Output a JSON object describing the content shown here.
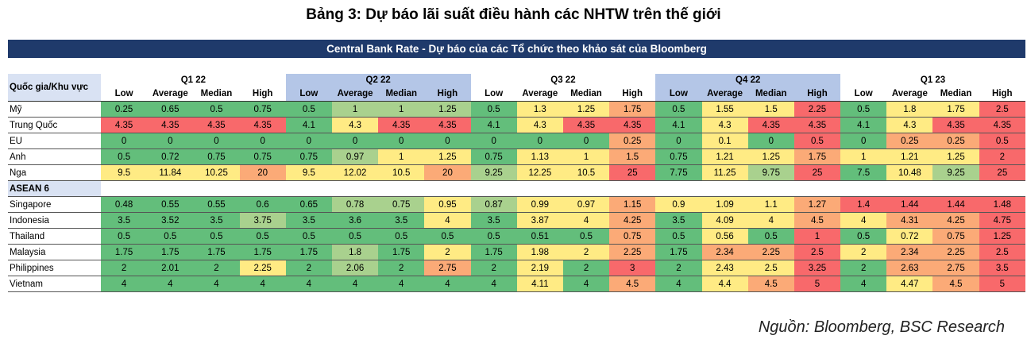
{
  "title": "Bảng 3: Dự báo lãi suất điều hành các NHTW trên thế giới",
  "banner": "Central Bank Rate - Dự báo của các Tổ chức theo khảo sát của Bloomberg",
  "row_header_label": "Quốc gia/Khu vực",
  "quarters": [
    "Q1 22",
    "Q2 22",
    "Q3 22",
    "Q4 22",
    "Q1 23"
  ],
  "metrics": [
    "Low",
    "Average",
    "Median",
    "High"
  ],
  "section_label": "ASEAN 6",
  "colors": {
    "green": "#63be7b",
    "lightgreen": "#a9d18e",
    "yellow": "#ffeb84",
    "orange": "#fbaa77",
    "red": "#f8696b",
    "header_blue": "#b4c6e7",
    "banner": "#1f3a6b"
  },
  "rows": [
    {
      "name": "Mỹ",
      "values": [
        "0.25",
        "0.65",
        "0.5",
        "0.75",
        "0.5",
        "1",
        "1",
        "1.25",
        "0.5",
        "1.3",
        "1.25",
        "1.75",
        "0.5",
        "1.55",
        "1.5",
        "2.25",
        "0.5",
        "1.8",
        "1.75",
        "2.5"
      ],
      "colors": [
        "g",
        "g",
        "g",
        "g",
        "g",
        "lg",
        "lg",
        "lg",
        "g",
        "y",
        "y",
        "o",
        "g",
        "y",
        "y",
        "r",
        "g",
        "y",
        "y",
        "r"
      ]
    },
    {
      "name": "Trung Quốc",
      "values": [
        "4.35",
        "4.35",
        "4.35",
        "4.35",
        "4.1",
        "4.3",
        "4.35",
        "4.35",
        "4.1",
        "4.3",
        "4.35",
        "4.35",
        "4.1",
        "4.3",
        "4.35",
        "4.35",
        "4.1",
        "4.3",
        "4.35",
        "4.35"
      ],
      "colors": [
        "r",
        "r",
        "r",
        "r",
        "g",
        "y",
        "r",
        "r",
        "g",
        "y",
        "r",
        "r",
        "g",
        "y",
        "r",
        "r",
        "g",
        "y",
        "r",
        "r"
      ]
    },
    {
      "name": "EU",
      "values": [
        "0",
        "0",
        "0",
        "0",
        "0",
        "0",
        "0",
        "0",
        "0",
        "0",
        "0",
        "0.25",
        "0",
        "0.1",
        "0",
        "0.5",
        "0",
        "0.25",
        "0.25",
        "0.5"
      ],
      "colors": [
        "g",
        "g",
        "g",
        "g",
        "g",
        "g",
        "g",
        "g",
        "g",
        "g",
        "g",
        "o",
        "g",
        "y",
        "g",
        "r",
        "g",
        "o",
        "o",
        "r"
      ]
    },
    {
      "name": "Anh",
      "values": [
        "0.5",
        "0.72",
        "0.75",
        "0.75",
        "0.75",
        "0.97",
        "1",
        "1.25",
        "0.75",
        "1.13",
        "1",
        "1.5",
        "0.75",
        "1.21",
        "1.25",
        "1.75",
        "1",
        "1.21",
        "1.25",
        "2"
      ],
      "colors": [
        "g",
        "g",
        "g",
        "g",
        "g",
        "lg",
        "y",
        "y",
        "g",
        "y",
        "y",
        "o",
        "g",
        "y",
        "y",
        "o",
        "y",
        "y",
        "y",
        "r"
      ]
    },
    {
      "name": "Nga",
      "values": [
        "9.5",
        "11.84",
        "10.25",
        "20",
        "9.5",
        "12.02",
        "10.5",
        "20",
        "9.25",
        "12.25",
        "10.5",
        "25",
        "7.75",
        "11.25",
        "9.75",
        "25",
        "7.5",
        "10.48",
        "9.25",
        "25"
      ],
      "colors": [
        "y",
        "y",
        "y",
        "o",
        "y",
        "y",
        "y",
        "o",
        "lg",
        "y",
        "y",
        "r",
        "g",
        "y",
        "lg",
        "r",
        "g",
        "y",
        "lg",
        "r"
      ]
    },
    {
      "section": true
    },
    {
      "name": "Singapore",
      "values": [
        "0.48",
        "0.55",
        "0.55",
        "0.6",
        "0.65",
        "0.78",
        "0.75",
        "0.95",
        "0.87",
        "0.99",
        "0.97",
        "1.15",
        "0.9",
        "1.09",
        "1.1",
        "1.27",
        "1.4",
        "1.44",
        "1.44",
        "1.48"
      ],
      "colors": [
        "g",
        "g",
        "g",
        "g",
        "g",
        "lg",
        "lg",
        "y",
        "lg",
        "y",
        "y",
        "o",
        "y",
        "y",
        "y",
        "o",
        "r",
        "r",
        "r",
        "r"
      ]
    },
    {
      "name": "Indonesia",
      "values": [
        "3.5",
        "3.52",
        "3.5",
        "3.75",
        "3.5",
        "3.6",
        "3.5",
        "4",
        "3.5",
        "3.87",
        "4",
        "4.25",
        "3.5",
        "4.09",
        "4",
        "4.5",
        "4",
        "4.31",
        "4.25",
        "4.75"
      ],
      "colors": [
        "g",
        "g",
        "g",
        "lg",
        "g",
        "g",
        "g",
        "y",
        "g",
        "y",
        "y",
        "o",
        "g",
        "y",
        "y",
        "o",
        "y",
        "o",
        "o",
        "r"
      ]
    },
    {
      "name": "Thailand",
      "values": [
        "0.5",
        "0.5",
        "0.5",
        "0.5",
        "0.5",
        "0.5",
        "0.5",
        "0.5",
        "0.5",
        "0.51",
        "0.5",
        "0.75",
        "0.5",
        "0.56",
        "0.5",
        "1",
        "0.5",
        "0.72",
        "0.75",
        "1.25"
      ],
      "colors": [
        "g",
        "g",
        "g",
        "g",
        "g",
        "g",
        "g",
        "g",
        "g",
        "g",
        "g",
        "o",
        "g",
        "y",
        "g",
        "r",
        "g",
        "y",
        "o",
        "r"
      ]
    },
    {
      "name": "Malaysia",
      "values": [
        "1.75",
        "1.75",
        "1.75",
        "1.75",
        "1.75",
        "1.8",
        "1.75",
        "2",
        "1.75",
        "1.98",
        "2",
        "2.25",
        "1.75",
        "2.34",
        "2.25",
        "2.5",
        "2",
        "2.34",
        "2.25",
        "2.5"
      ],
      "colors": [
        "g",
        "g",
        "g",
        "g",
        "g",
        "lg",
        "g",
        "y",
        "g",
        "y",
        "y",
        "o",
        "g",
        "o",
        "o",
        "r",
        "y",
        "o",
        "o",
        "r"
      ]
    },
    {
      "name": "Philippines",
      "values": [
        "2",
        "2.01",
        "2",
        "2.25",
        "2",
        "2.06",
        "2",
        "2.75",
        "2",
        "2.19",
        "2",
        "3",
        "2",
        "2.43",
        "2.5",
        "3.25",
        "2",
        "2.63",
        "2.75",
        "3.5"
      ],
      "colors": [
        "g",
        "g",
        "g",
        "y",
        "g",
        "lg",
        "g",
        "o",
        "g",
        "y",
        "g",
        "r",
        "g",
        "y",
        "y",
        "r",
        "g",
        "o",
        "o",
        "r"
      ]
    },
    {
      "name": "Vietnam",
      "values": [
        "4",
        "4",
        "4",
        "4",
        "4",
        "4",
        "4",
        "4",
        "4",
        "4.11",
        "4",
        "4.5",
        "4",
        "4.4",
        "4.5",
        "5",
        "4",
        "4.47",
        "4.5",
        "5"
      ],
      "colors": [
        "g",
        "g",
        "g",
        "g",
        "g",
        "g",
        "g",
        "g",
        "g",
        "y",
        "g",
        "o",
        "g",
        "y",
        "o",
        "r",
        "g",
        "y",
        "o",
        "r"
      ]
    }
  ],
  "source": "Nguồn: Bloomberg, BSC Research"
}
